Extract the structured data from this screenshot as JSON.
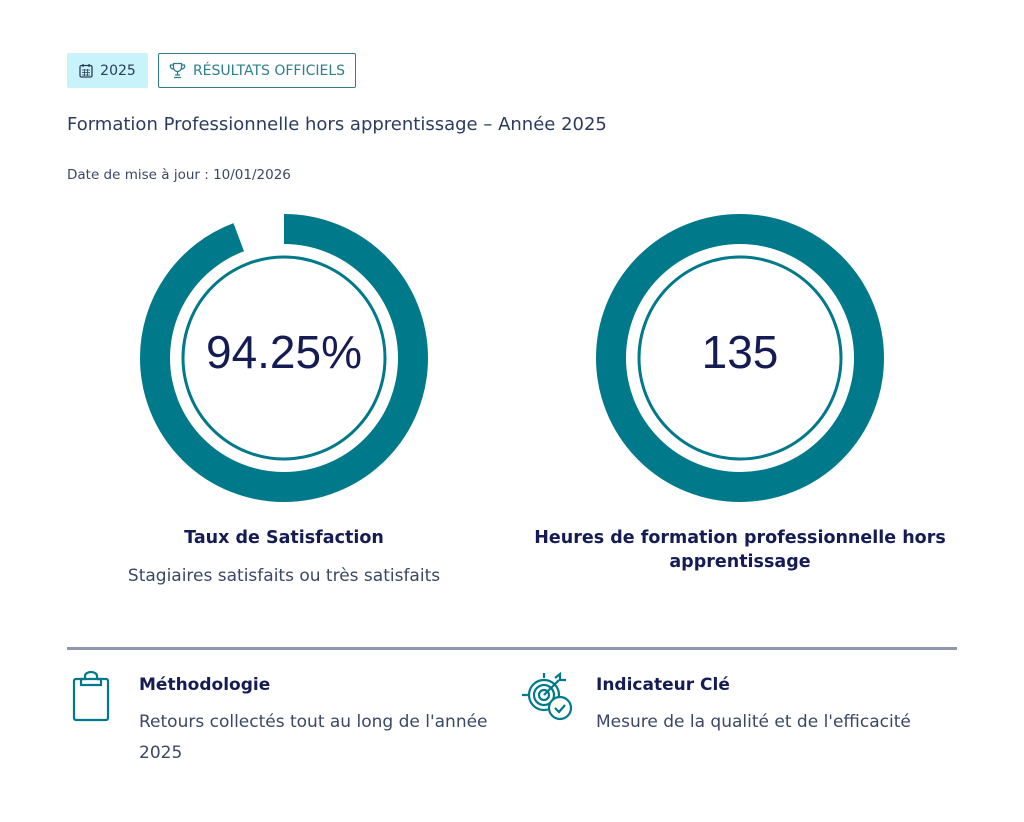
{
  "header": {
    "year_badge": "2025",
    "official_badge": "RÉSULTATS OFFICIELS",
    "title": "Formation Professionnelle hors apprentissage – Année 2025",
    "update_date": "Date de mise à jour : 10/01/2026"
  },
  "kpis": [
    {
      "value": "94.25%",
      "fill_percent": 94.25,
      "label": "Taux de Satisfaction",
      "sublabel": "Stagiaires satisfaits ou très satisfaits"
    },
    {
      "value": "135",
      "fill_percent": 100,
      "label": "Heures de formation professionnelle hors apprentissage"
    }
  ],
  "footer": [
    {
      "title": "Méthodologie",
      "text": "Retours collectés tout au long de l'année 2025",
      "icon": "clipboard-icon"
    },
    {
      "title": "Indicateur Clé",
      "text": "Mesure de la qualité et de l'efficacité",
      "icon": "target-check-icon"
    }
  ],
  "colors": {
    "accent": "#00798a",
    "text": "#151c54"
  }
}
